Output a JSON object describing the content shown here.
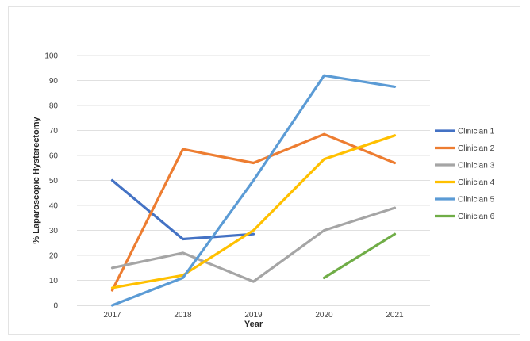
{
  "chart_data": {
    "type": "line",
    "title": "",
    "xlabel": "Year",
    "ylabel": "% Laparoscopic Hysterectomy",
    "categories": [
      "2017",
      "2018",
      "2019",
      "2020",
      "2021"
    ],
    "ylim": [
      0,
      100
    ],
    "yticks": [
      0,
      10,
      20,
      30,
      40,
      50,
      60,
      70,
      80,
      90,
      100
    ],
    "grid": "horizontal",
    "legend": "right",
    "series": [
      {
        "name": "Clinician 1",
        "color": "#4472c4",
        "values": [
          50,
          26.5,
          28.5,
          null,
          null
        ]
      },
      {
        "name": "Clinician 2",
        "color": "#ed7d31",
        "values": [
          6,
          62.5,
          57,
          68.5,
          57
        ]
      },
      {
        "name": "Clinician 3",
        "color": "#a5a5a5",
        "values": [
          15,
          21,
          9.5,
          30,
          39
        ]
      },
      {
        "name": "Clinician 4",
        "color": "#ffc000",
        "values": [
          7,
          12,
          30,
          58.5,
          68
        ]
      },
      {
        "name": "Clinician 5",
        "color": "#5b9bd5",
        "values": [
          0,
          11,
          50,
          92,
          87.5
        ]
      },
      {
        "name": "Clinician 6",
        "color": "#70ad47",
        "values": [
          null,
          null,
          null,
          11,
          28.5
        ]
      }
    ]
  }
}
